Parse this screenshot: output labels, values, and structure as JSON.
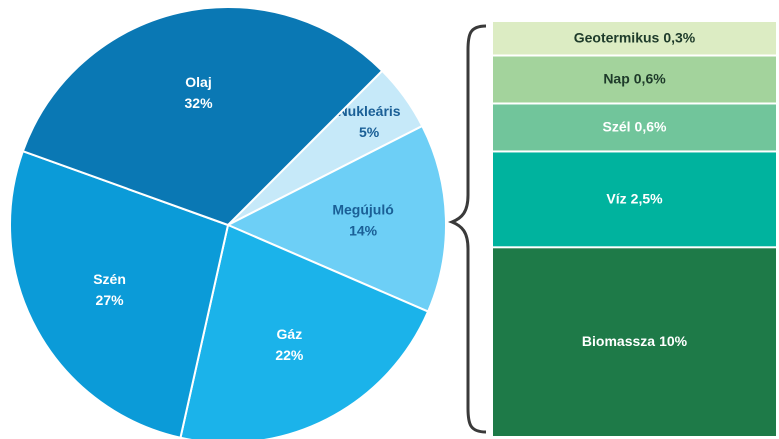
{
  "chart_data": [
    {
      "type": "pie",
      "categories": [
        "Nukleáris",
        "Megújuló",
        "Gáz",
        "Szén",
        "Olaj"
      ],
      "values": [
        5,
        14,
        22,
        27,
        32
      ],
      "value_labels": [
        "5%",
        "14%",
        "22%",
        "27%",
        "32%"
      ],
      "colors": [
        "#c6e9f9",
        "#6dcff6",
        "#1bb3ea",
        "#0b9bd8",
        "#0a78b4"
      ]
    },
    {
      "type": "stacked_bar",
      "categories": [
        "Geotermikus",
        "Nap",
        "Szél",
        "Víz",
        "Biomassza"
      ],
      "values": [
        0.3,
        0.6,
        0.6,
        2.5,
        10
      ],
      "value_labels": [
        "0,3%",
        "0,6%",
        "0,6%",
        "2,5%",
        "10%"
      ],
      "colors": [
        "#dcecc3",
        "#a3d39c",
        "#71c59b",
        "#00b39e",
        "#1e7a48"
      ]
    }
  ]
}
